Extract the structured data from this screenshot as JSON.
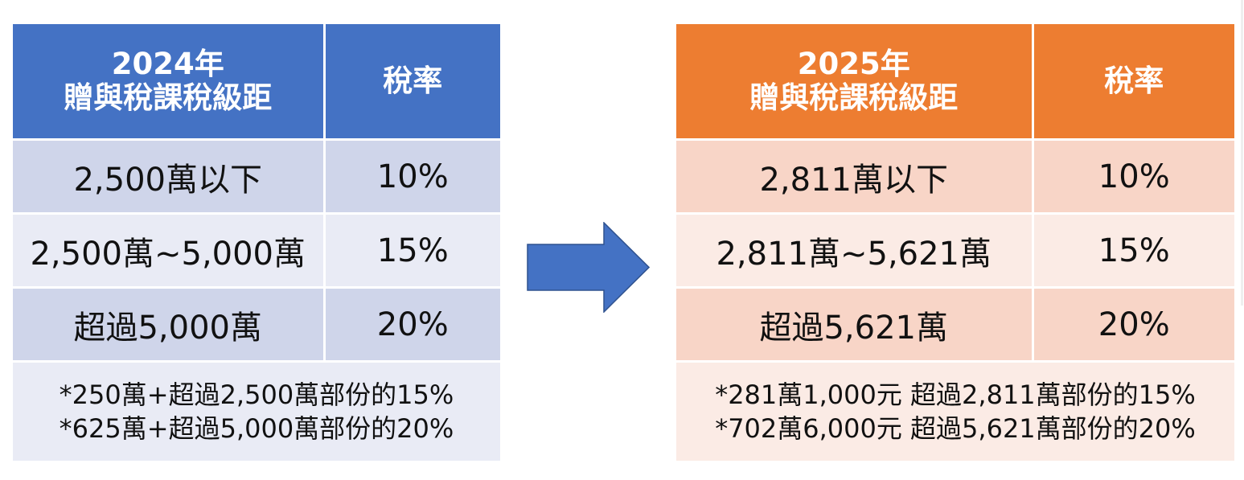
{
  "left_table": {
    "header": {
      "line1": "2024年",
      "line2": "贈與稅課稅級距",
      "rate": "稅率"
    },
    "rows": [
      {
        "bracket": "2,500萬以下",
        "rate": "10%"
      },
      {
        "bracket": "2,500萬~5,000萬",
        "rate": "15%"
      },
      {
        "bracket": "超過5,000萬",
        "rate": "20%"
      }
    ],
    "notes": [
      "*250萬+超過2,500萬部份的15%",
      "*625萬+超過5,000萬部份的20%"
    ]
  },
  "right_table": {
    "header": {
      "line1": "2025年",
      "line2": "贈與稅課稅級距",
      "rate": "稅率"
    },
    "rows": [
      {
        "bracket": "2,811萬以下",
        "rate": "10%"
      },
      {
        "bracket": "2,811萬~5,621萬",
        "rate": "15%"
      },
      {
        "bracket": "超過5,621萬",
        "rate": "20%"
      }
    ],
    "notes": [
      "*281萬1,000元 超過2,811萬部份的15%",
      "*702萬6,000元 超過5,621萬部份的20%"
    ]
  },
  "colors": {
    "left_header": "#4472c4",
    "right_header": "#ed7d31",
    "arrow": "#4472c4"
  },
  "arrow_icon": "right-arrow-icon"
}
